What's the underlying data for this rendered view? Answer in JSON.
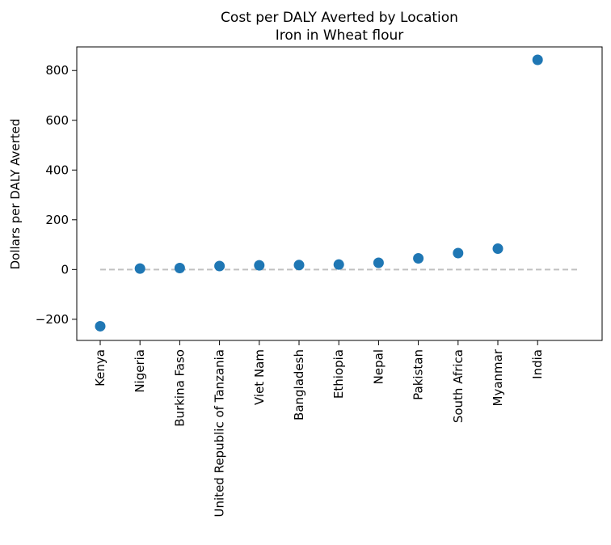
{
  "chart_data": {
    "type": "scatter",
    "title": "Cost per DALY Averted by Location",
    "subtitle": "Iron in Wheat flour",
    "xlabel": "",
    "ylabel": "Dollars per DALY Averted",
    "categories": [
      "Kenya",
      "Nigeria",
      "Burkina Faso",
      "United Republic of Tanzania",
      "Viet Nam",
      "Bangladesh",
      "Ethiopia",
      "Nepal",
      "Pakistan",
      "South Africa",
      "Myanmar",
      "India"
    ],
    "values": [
      -228,
      4,
      6,
      14,
      17,
      18,
      20,
      27,
      45,
      66,
      84,
      843
    ],
    "ylim": [
      -285,
      895
    ],
    "yticks": [
      -200,
      0,
      200,
      400,
      600,
      800
    ],
    "ytick_labels": [
      "−200",
      "0",
      "200",
      "400",
      "600",
      "800"
    ],
    "reference_line": {
      "y": 0,
      "style": "dashed",
      "color": "#c0c0c0"
    },
    "marker_color": "#1f77b4",
    "grid": false,
    "legend": "none"
  }
}
